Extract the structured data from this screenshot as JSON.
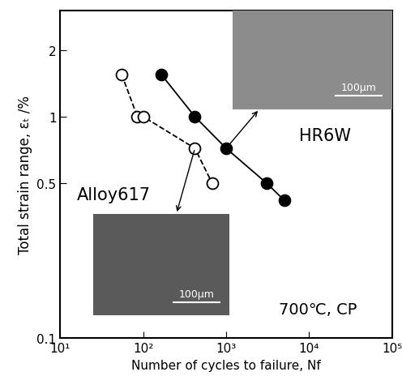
{
  "chart_data": {
    "type": "scatter",
    "x_label": "Number of cycles to failure, Nf",
    "y_label": "Total strain range, εₜ /%",
    "log": true,
    "xlim": [
      10,
      100000
    ],
    "ylim": [
      0.1,
      3
    ],
    "xticks": [
      {
        "value": 10,
        "label": "10¹"
      },
      {
        "value": 100,
        "label": "10²"
      },
      {
        "value": 1000,
        "label": "10³"
      },
      {
        "value": 10000,
        "label": "10⁴"
      },
      {
        "value": 100000,
        "label": "10⁵"
      }
    ],
    "yticks": [
      0.1,
      0.5,
      1,
      2
    ],
    "series": [
      {
        "name": "Alloy617",
        "color": "#000000",
        "marker": "open_circle",
        "line_style": "dashed",
        "x": [
          55,
          85,
          100,
          420,
          680
        ],
        "values": [
          1.55,
          1.0,
          1.0,
          0.72,
          0.5
        ]
      },
      {
        "name": "HR6W",
        "color": "#000000",
        "marker": "filled_circle",
        "line_style": "solid",
        "x": [
          165,
          420,
          1000,
          3100,
          5000
        ],
        "values": [
          1.55,
          1.0,
          0.72,
          0.5,
          0.42
        ]
      }
    ],
    "annotations": [
      "700℃, CP",
      "100μm",
      "100μm"
    ]
  }
}
